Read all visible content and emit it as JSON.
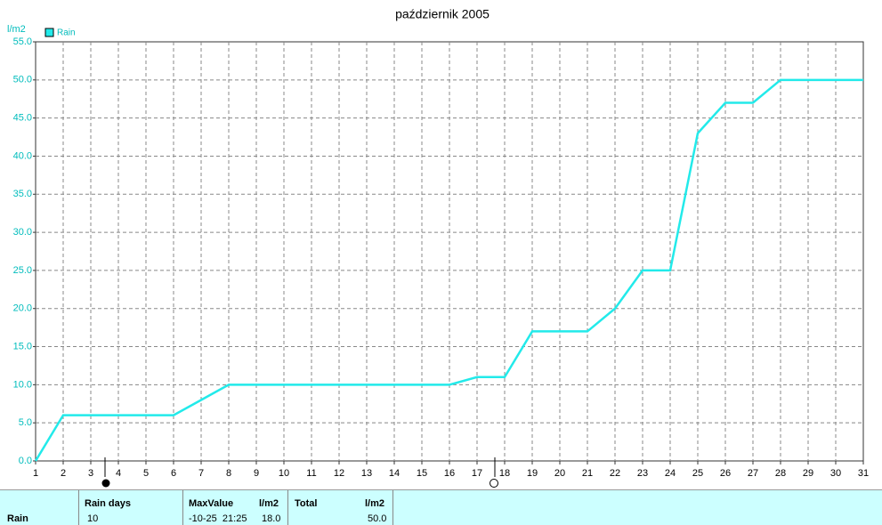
{
  "chart_data": {
    "type": "line",
    "title": "październik 2005",
    "y_label": "l/m2",
    "x": [
      1,
      2,
      3,
      4,
      5,
      6,
      7,
      8,
      9,
      10,
      11,
      12,
      13,
      14,
      15,
      16,
      17,
      18,
      19,
      20,
      21,
      22,
      23,
      24,
      25,
      26,
      27,
      28,
      29,
      30,
      31
    ],
    "series": [
      {
        "name": "Rain",
        "color": "#22eaea",
        "values": [
          0,
          6,
          6,
          6,
          6,
          6,
          8,
          10,
          10,
          10,
          10,
          10,
          10,
          10,
          10,
          10,
          11,
          11,
          17,
          17,
          17,
          20,
          25,
          25,
          43,
          47,
          47,
          50,
          50,
          50,
          50
        ]
      }
    ],
    "xlim": [
      1,
      31
    ],
    "xticks": [
      1,
      2,
      3,
      4,
      5,
      6,
      7,
      8,
      9,
      10,
      11,
      12,
      13,
      14,
      15,
      16,
      17,
      18,
      19,
      20,
      21,
      22,
      23,
      24,
      25,
      26,
      27,
      28,
      29,
      30,
      31
    ],
    "ylim": [
      0,
      55
    ],
    "yticks": [
      {
        "value": 0,
        "label": "0.0"
      },
      {
        "value": 5,
        "label": "5.0"
      },
      {
        "value": 10,
        "label": "10.0"
      },
      {
        "value": 15,
        "label": "15.0"
      },
      {
        "value": 20,
        "label": "20.0"
      },
      {
        "value": 25,
        "label": "25.0"
      },
      {
        "value": 30,
        "label": "30.0"
      },
      {
        "value": 35,
        "label": "35.0"
      },
      {
        "value": 40,
        "label": "40.0"
      },
      {
        "value": 45,
        "label": "45.0"
      },
      {
        "value": 50,
        "label": "50.0"
      },
      {
        "value": 55,
        "label": "55.0"
      }
    ],
    "grid": true,
    "legend": "top-left"
  },
  "summary": {
    "row_label": "Rain",
    "columns": [
      {
        "header": "Rain days",
        "unit": null,
        "cells": [
          "10"
        ]
      },
      {
        "header": "MaxValue",
        "unit": "l/m2",
        "cells": [
          "-10-25  21:25",
          "18.0"
        ]
      },
      {
        "header": "Total",
        "unit": "l/m2",
        "cells": [
          "50.0"
        ]
      }
    ]
  }
}
